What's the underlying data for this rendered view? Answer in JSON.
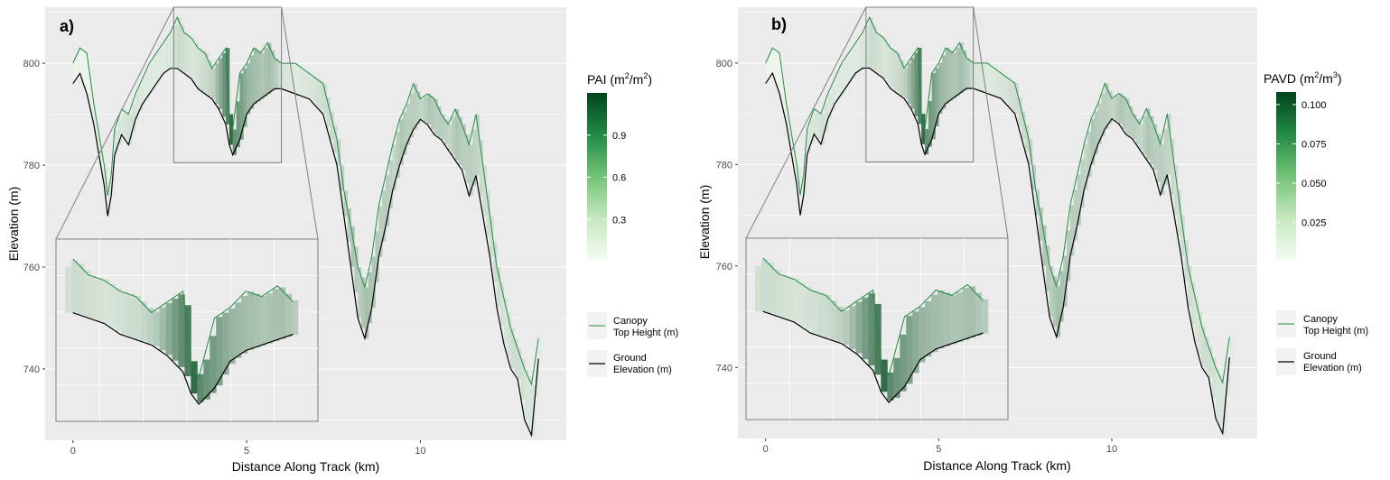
{
  "chart_data": [
    {
      "type": "area",
      "panel_label": "a)",
      "xlabel": "Distance Along Track (km)",
      "ylabel": "Elevation (m)",
      "xlim": [
        -0.8,
        14.2
      ],
      "ylim": [
        726,
        811
      ],
      "x_ticks": [
        0,
        5,
        10
      ],
      "y_ticks": [
        740,
        760,
        780,
        800
      ],
      "fill_legend": {
        "title_main": "PAI (m",
        "title_sup1": "2",
        "title_mid": "/m",
        "title_sup2": "2",
        "title_end": ")",
        "ticks": [
          0.3,
          0.6,
          0.9
        ],
        "tick_labels": [
          "0.3",
          "0.6",
          "0.9"
        ],
        "range": [
          0,
          1.2
        ],
        "low_color": "#f7fcf5",
        "high_color": "#00441b"
      },
      "series": [
        {
          "name_line1": "Canopy",
          "name_line2": "Top Height (m)",
          "color": "#238b45"
        },
        {
          "name_line1": "Ground",
          "name_line2": "Elevation (m)",
          "color": "#000000"
        }
      ],
      "zoom_box": {
        "x": [
          2.9,
          6.0
        ],
        "y": [
          780.5,
          811
        ]
      }
    },
    {
      "type": "area",
      "panel_label": "b)",
      "xlabel": "Distance Along Track (km)",
      "ylabel": "Elevation (m)",
      "xlim": [
        -0.8,
        14.2
      ],
      "ylim": [
        726,
        811
      ],
      "x_ticks": [
        0,
        5,
        10
      ],
      "y_ticks": [
        740,
        760,
        780,
        800
      ],
      "fill_legend": {
        "title_main": "PAVD (m",
        "title_sup1": "2",
        "title_mid": "/m",
        "title_sup2": "3",
        "title_end": ")",
        "ticks": [
          0.025,
          0.05,
          0.075,
          0.1
        ],
        "tick_labels": [
          "0.025",
          "0.050",
          "0.075",
          "0.100"
        ],
        "range": [
          0,
          0.108
        ],
        "low_color": "#f7fcf5",
        "high_color": "#00441b"
      },
      "series": [
        {
          "name_line1": "Canopy",
          "name_line2": "Top Height (m)",
          "color": "#238b45"
        },
        {
          "name_line1": "Ground",
          "name_line2": "Elevation (m)",
          "color": "#000000"
        }
      ],
      "zoom_box": {
        "x": [
          2.9,
          6.0
        ],
        "y": [
          780.5,
          811
        ]
      }
    }
  ],
  "profile": {
    "x": [
      0.0,
      0.2,
      0.4,
      0.6,
      0.8,
      0.9,
      1.0,
      1.1,
      1.2,
      1.4,
      1.6,
      1.8,
      2.0,
      2.2,
      2.4,
      2.6,
      2.8,
      3.0,
      3.2,
      3.4,
      3.6,
      3.8,
      4.0,
      4.2,
      4.4,
      4.5,
      4.6,
      4.8,
      5.0,
      5.2,
      5.4,
      5.6,
      5.8,
      6.0,
      6.4,
      6.8,
      7.2,
      7.6,
      7.8,
      8.0,
      8.2,
      8.4,
      8.6,
      8.8,
      9.0,
      9.2,
      9.4,
      9.6,
      9.8,
      10.0,
      10.2,
      10.4,
      10.6,
      10.8,
      11.0,
      11.2,
      11.4,
      11.6,
      11.8,
      12.0,
      12.2,
      12.4,
      12.6,
      12.8,
      13.0,
      13.2,
      13.4
    ],
    "ground": [
      796,
      798,
      794,
      788,
      780,
      776,
      770,
      774,
      782,
      786,
      784,
      789,
      792,
      794,
      796,
      798,
      799,
      799,
      798,
      797,
      795,
      794,
      793,
      791,
      788,
      784,
      782,
      785,
      790,
      792,
      793,
      794,
      795,
      795,
      794,
      793,
      790,
      780,
      770,
      760,
      750,
      746,
      752,
      762,
      768,
      775,
      780,
      784,
      787,
      789,
      788,
      786,
      785,
      783,
      781,
      779,
      774,
      778,
      770,
      762,
      752,
      745,
      740,
      738,
      730,
      727,
      742
    ],
    "canopy": [
      800,
      803,
      802,
      792,
      784,
      780,
      774,
      778,
      787,
      791,
      790,
      794,
      797,
      800,
      802,
      804,
      806,
      809,
      806,
      805,
      803,
      802,
      799,
      801,
      803,
      790,
      787,
      798,
      800,
      803,
      802,
      804,
      801,
      800,
      800,
      798,
      796,
      785,
      775,
      768,
      760,
      756,
      762,
      772,
      778,
      784,
      789,
      792,
      796,
      793,
      794,
      793,
      790,
      788,
      791,
      788,
      784,
      790,
      780,
      770,
      760,
      754,
      748,
      744,
      740,
      737,
      746
    ],
    "density": [
      0.05,
      0.05,
      0.06,
      0.08,
      0.1,
      0.12,
      0.1,
      0.12,
      0.15,
      0.15,
      0.18,
      0.15,
      0.12,
      0.12,
      0.12,
      0.12,
      0.14,
      0.22,
      0.18,
      0.15,
      0.18,
      0.22,
      0.3,
      0.55,
      0.8,
      0.95,
      0.7,
      0.6,
      0.45,
      0.4,
      0.35,
      0.4,
      0.3,
      0.15,
      0.12,
      0.15,
      0.2,
      0.25,
      0.3,
      0.35,
      0.3,
      0.4,
      0.35,
      0.3,
      0.3,
      0.25,
      0.35,
      0.3,
      0.3,
      0.25,
      0.35,
      0.3,
      0.3,
      0.25,
      0.35,
      0.3,
      0.3,
      0.25,
      0.2,
      0.2,
      0.2,
      0.15,
      0.2,
      0.2,
      0.15,
      0.15,
      0.1
    ]
  }
}
